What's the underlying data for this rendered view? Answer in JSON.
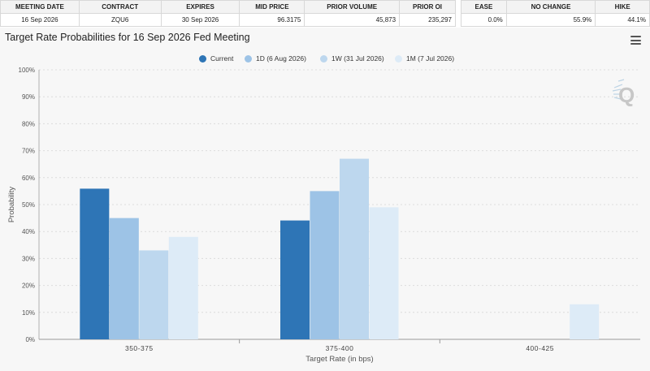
{
  "meeting_table": {
    "headers": [
      "MEETING DATE",
      "CONTRACT",
      "EXPIRES",
      "MID PRICE",
      "PRIOR VOLUME",
      "PRIOR OI"
    ],
    "row": [
      "16 Sep 2026",
      "ZQU6",
      "30 Sep 2026",
      "96.3175",
      "45,873",
      "235,297"
    ]
  },
  "probability_table": {
    "headers": [
      "EASE",
      "NO CHANGE",
      "HIKE"
    ],
    "row": [
      "0.0%",
      "55.9%",
      "44.1%"
    ]
  },
  "chart": {
    "menu_icon": "hamburger-menu-icon",
    "logo_icon": "quikstrike-q-logo"
  },
  "chart_data": {
    "type": "bar",
    "title": "Target Rate Probabilities for 16 Sep 2026 Fed Meeting",
    "xlabel": "Target Rate (in bps)",
    "ylabel": "Probability",
    "categories": [
      "350-375",
      "375-400",
      "400-425"
    ],
    "ylim": [
      0,
      100
    ],
    "yticks": [
      "0%",
      "10%",
      "20%",
      "30%",
      "40%",
      "50%",
      "60%",
      "70%",
      "80%",
      "90%",
      "100%"
    ],
    "grid": true,
    "legend_position": "top-center",
    "series": [
      {
        "name": "Current",
        "color": "#2e75b6",
        "values": [
          55.9,
          44.1,
          0
        ]
      },
      {
        "name": "1D (6 Aug 2026)",
        "color": "#9dc3e6",
        "values": [
          45,
          55,
          0
        ]
      },
      {
        "name": "1W (31 Jul 2026)",
        "color": "#bdd7ee",
        "values": [
          33,
          67,
          0
        ]
      },
      {
        "name": "1M (7 Jul 2026)",
        "color": "#ddebf7",
        "values": [
          38,
          49,
          13
        ]
      }
    ]
  }
}
